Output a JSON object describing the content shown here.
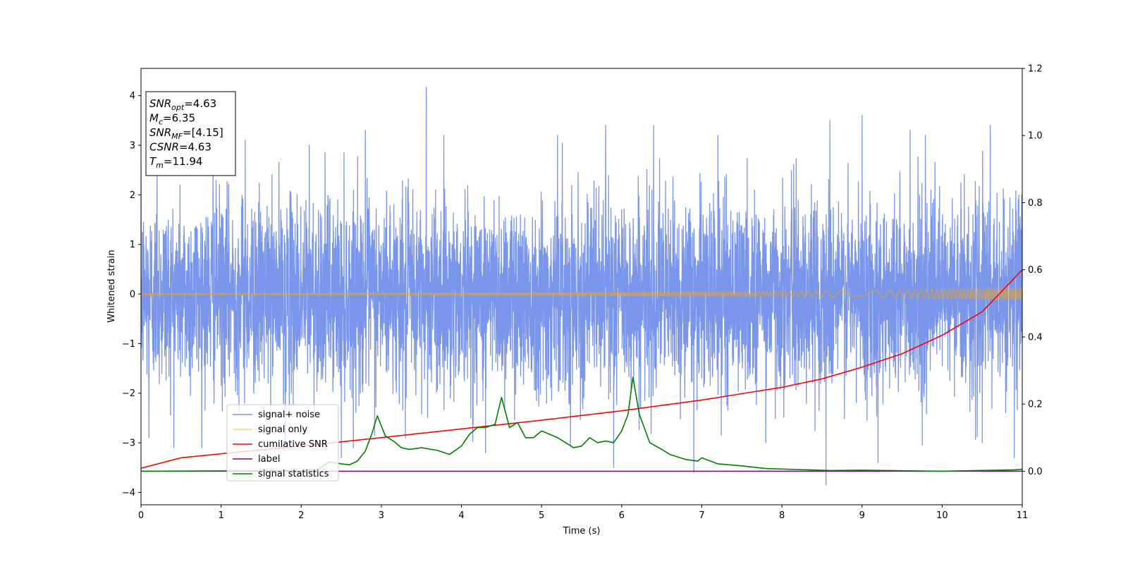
{
  "chart_data": {
    "type": "line",
    "xlabel": "Time (s)",
    "ylabel_left": "Whitened strain",
    "xlim": [
      0,
      11
    ],
    "ylim_left": [
      -4.25,
      4.55
    ],
    "ylim_right": [
      -0.1,
      1.2
    ],
    "x_ticks": [
      "0",
      "1",
      "2",
      "3",
      "4",
      "5",
      "6",
      "7",
      "8",
      "9",
      "10",
      "11"
    ],
    "y_left_ticks": [
      "−4",
      "−3",
      "−2",
      "−1",
      "0",
      "1",
      "2",
      "3",
      "4"
    ],
    "y_right_ticks": [
      "0.0",
      "0.2",
      "0.4",
      "0.6",
      "0.8",
      "1.0",
      "1.2"
    ],
    "grid": false,
    "legend_position": "lower-left",
    "info_box": {
      "lines": [
        {
          "var": "SNR",
          "sub": "opt",
          "value": "=4.63"
        },
        {
          "var": "M",
          "sub": "c",
          "value": "=6.35"
        },
        {
          "var": "SNR",
          "sub": "MF",
          "value": "=[4.15]"
        },
        {
          "var": "CSNR",
          "sub": "",
          "value": "=4.63"
        },
        {
          "var": "T",
          "sub": "m",
          "value": "=11.94"
        }
      ]
    },
    "series": [
      {
        "name": "signal+ noise",
        "axis": "left",
        "color": "#4169e1",
        "opacity": 0.7,
        "kind": "noise",
        "std": 0.95,
        "peaks": [
          {
            "x": 0.2,
            "y": 3.0
          },
          {
            "x": 0.9,
            "y": 2.9
          },
          {
            "x": 1.3,
            "y": 3.1
          },
          {
            "x": 2.1,
            "y": 3.0
          },
          {
            "x": 2.8,
            "y": 3.3
          },
          {
            "x": 3.56,
            "y": 4.17
          },
          {
            "x": 4.3,
            "y": 3.1
          },
          {
            "x": 5.2,
            "y": 3.2
          },
          {
            "x": 5.8,
            "y": 3.4
          },
          {
            "x": 6.4,
            "y": 3.4
          },
          {
            "x": 7.2,
            "y": 3.2
          },
          {
            "x": 7.8,
            "y": 3.6
          },
          {
            "x": 8.6,
            "y": 3.5
          },
          {
            "x": 9.0,
            "y": 3.6
          },
          {
            "x": 9.6,
            "y": 3.3
          },
          {
            "x": 10.6,
            "y": 3.4
          },
          {
            "x": 10.9,
            "y": 3.0
          },
          {
            "x": 0.1,
            "y": -2.9
          },
          {
            "x": 1.8,
            "y": -3.0
          },
          {
            "x": 2.5,
            "y": -3.3
          },
          {
            "x": 3.3,
            "y": -2.9
          },
          {
            "x": 4.3,
            "y": -3.2
          },
          {
            "x": 5.9,
            "y": -3.5
          },
          {
            "x": 6.9,
            "y": -3.6
          },
          {
            "x": 7.8,
            "y": -3.0
          },
          {
            "x": 8.55,
            "y": -3.85
          },
          {
            "x": 9.2,
            "y": -3.4
          },
          {
            "x": 10.5,
            "y": -3.0
          },
          {
            "x": 10.9,
            "y": -3.3
          }
        ]
      },
      {
        "name": "signal only",
        "axis": "left",
        "color": "#ffa500",
        "opacity": 0.5,
        "kind": "chirp",
        "amplitude_start": 0.015,
        "amplitude_end": 0.12
      },
      {
        "name": "cumilative SNR",
        "axis": "right",
        "color": "#ff0000",
        "x": [
          0,
          0.5,
          1,
          2,
          3,
          4,
          5,
          6,
          7,
          8,
          8.5,
          9,
          9.5,
          10,
          10.5,
          11
        ],
        "y": [
          0.009,
          0.04,
          0.052,
          0.075,
          0.1,
          0.126,
          0.152,
          0.18,
          0.212,
          0.25,
          0.275,
          0.31,
          0.35,
          0.405,
          0.475,
          0.6
        ]
      },
      {
        "name": "label",
        "axis": "right",
        "color": "#800080",
        "x": [
          0,
          11
        ],
        "y": [
          0.0,
          0.0
        ]
      },
      {
        "name": "signal statistics",
        "axis": "right",
        "color": "#008000",
        "x": [
          0,
          2.0,
          2.2,
          2.35,
          2.5,
          2.6,
          2.7,
          2.8,
          2.88,
          2.95,
          3.05,
          3.15,
          3.25,
          3.35,
          3.5,
          3.7,
          3.85,
          4.0,
          4.1,
          4.2,
          4.3,
          4.42,
          4.5,
          4.6,
          4.7,
          4.8,
          4.9,
          5.0,
          5.1,
          5.2,
          5.3,
          5.4,
          5.5,
          5.6,
          5.7,
          5.8,
          5.9,
          6.0,
          6.08,
          6.14,
          6.22,
          6.35,
          6.5,
          6.6,
          6.8,
          6.95,
          7.0,
          7.2,
          7.5,
          7.8,
          8.2,
          8.6,
          9.0,
          10.0,
          10.9,
          11.0
        ],
        "y": [
          0.0,
          0.002,
          0.005,
          0.028,
          0.022,
          0.019,
          0.03,
          0.06,
          0.11,
          0.165,
          0.105,
          0.09,
          0.07,
          0.065,
          0.07,
          0.062,
          0.05,
          0.075,
          0.11,
          0.13,
          0.13,
          0.14,
          0.22,
          0.13,
          0.145,
          0.1,
          0.1,
          0.12,
          0.11,
          0.1,
          0.085,
          0.07,
          0.075,
          0.1,
          0.085,
          0.09,
          0.085,
          0.12,
          0.17,
          0.28,
          0.17,
          0.085,
          0.065,
          0.05,
          0.035,
          0.03,
          0.04,
          0.022,
          0.016,
          0.008,
          0.005,
          0.002,
          0.003,
          0.0,
          0.004,
          0.006
        ]
      }
    ]
  }
}
